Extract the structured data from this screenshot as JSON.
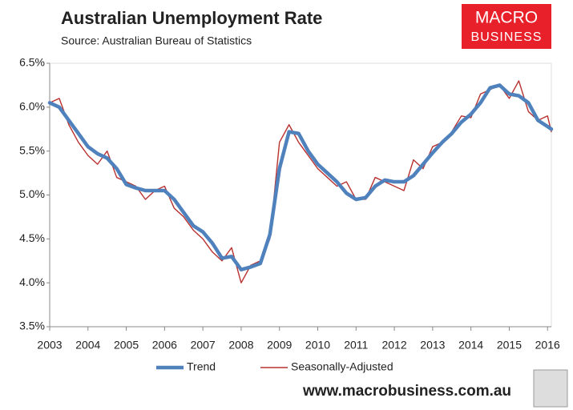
{
  "chart_data": {
    "type": "line",
    "title": "Australian Unemployment Rate",
    "subtitle": "Source: Australian Bureau of Statistics",
    "x": [
      2003,
      2003.25,
      2003.5,
      2003.75,
      2004,
      2004.25,
      2004.5,
      2004.75,
      2005,
      2005.25,
      2005.5,
      2005.75,
      2006,
      2006.25,
      2006.5,
      2006.75,
      2007,
      2007.25,
      2007.5,
      2007.75,
      2008,
      2008.25,
      2008.5,
      2008.75,
      2009,
      2009.25,
      2009.5,
      2009.75,
      2010,
      2010.25,
      2010.5,
      2010.75,
      2011,
      2011.25,
      2011.5,
      2011.75,
      2012,
      2012.25,
      2012.5,
      2012.75,
      2013,
      2013.25,
      2013.5,
      2013.75,
      2014,
      2014.25,
      2014.5,
      2014.75,
      2015,
      2015.25,
      2015.5,
      2015.75,
      2016,
      2016.1
    ],
    "series": [
      {
        "name": "Trend",
        "color": "#4f81bd",
        "values": [
          6.05,
          6.0,
          5.85,
          5.7,
          5.55,
          5.47,
          5.42,
          5.3,
          5.12,
          5.08,
          5.05,
          5.05,
          5.05,
          4.95,
          4.8,
          4.65,
          4.58,
          4.45,
          4.28,
          4.3,
          4.15,
          4.18,
          4.22,
          4.55,
          5.3,
          5.72,
          5.7,
          5.5,
          5.35,
          5.25,
          5.15,
          5.02,
          4.95,
          4.97,
          5.1,
          5.17,
          5.15,
          5.15,
          5.22,
          5.35,
          5.48,
          5.6,
          5.7,
          5.83,
          5.92,
          6.05,
          6.22,
          6.25,
          6.15,
          6.13,
          6.05,
          5.85,
          5.78,
          5.75
        ]
      },
      {
        "name": "Seasonally-Adjusted",
        "color": "#b8312f",
        "values": [
          6.05,
          6.1,
          5.8,
          5.6,
          5.45,
          5.35,
          5.5,
          5.2,
          5.15,
          5.1,
          4.95,
          5.05,
          5.1,
          4.85,
          4.75,
          4.6,
          4.5,
          4.35,
          4.25,
          4.4,
          4.0,
          4.2,
          4.25,
          4.5,
          5.6,
          5.8,
          5.6,
          5.45,
          5.3,
          5.2,
          5.1,
          5.15,
          4.95,
          4.95,
          5.2,
          5.15,
          5.1,
          5.05,
          5.4,
          5.3,
          5.55,
          5.6,
          5.72,
          5.9,
          5.88,
          6.15,
          6.2,
          6.25,
          6.1,
          6.3,
          5.95,
          5.85,
          5.9,
          5.72
        ]
      }
    ],
    "xlim": [
      2003,
      2016.1
    ],
    "xticks": [
      2003,
      2004,
      2005,
      2006,
      2007,
      2008,
      2009,
      2010,
      2011,
      2012,
      2013,
      2014,
      2015,
      2016
    ],
    "ylim": [
      3.5,
      6.5
    ],
    "yticks": [
      {
        "value": 3.5,
        "label": "3.5%"
      },
      {
        "value": 4,
        "label": "4.0%"
      },
      {
        "value": 4.5,
        "label": "4.5%"
      },
      {
        "value": 5,
        "label": "5.0%"
      },
      {
        "value": 5.5,
        "label": "5.5%"
      },
      {
        "value": 6,
        "label": "6.0%"
      },
      {
        "value": 6.5,
        "label": "6.5%"
      }
    ],
    "legend": "bottom"
  },
  "logo": [
    "MACRO",
    "BUSINESS"
  ],
  "website": "www.macrobusiness.com.au"
}
